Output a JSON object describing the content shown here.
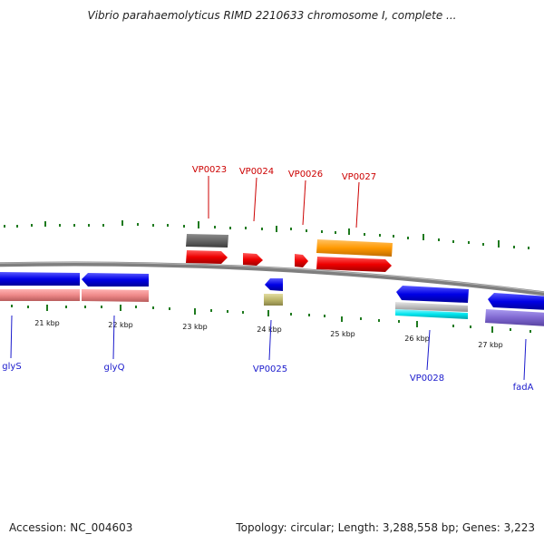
{
  "title": "Vibrio parahaemolyticus RIMD 2210633 chromosome I, complete ...",
  "footer": {
    "accession": "Accession: NC_004603",
    "summary": "Topology: circular; Length: 3,288,558 bp; Genes: 3,223"
  },
  "ruler_labels": [
    "21 kbp",
    "22 kbp",
    "23 kbp",
    "24 kbp",
    "25 kbp",
    "26 kbp",
    "27 kbp"
  ],
  "gene_labels_top": [
    "VP0023",
    "VP0024",
    "VP0026",
    "VP0027"
  ],
  "gene_labels_bottom": [
    "glyS",
    "glyQ",
    "VP0025",
    "VP0028",
    "fadA"
  ],
  "colors": {
    "top_label": "#cc0000",
    "bottom_label": "#1a1acc",
    "tick": "#1f7a1f",
    "backbone": "#808080",
    "cds_red": "#ee0000",
    "cds_blue": "#0000dd",
    "gene_pink": "#ee8888",
    "orange": "#ff9900",
    "dark_gray": "#666666",
    "light_gray": "#bbbbbb",
    "cyan": "#00e5ee",
    "khaki": "#bdb76b",
    "purple": "#7f68d0"
  }
}
